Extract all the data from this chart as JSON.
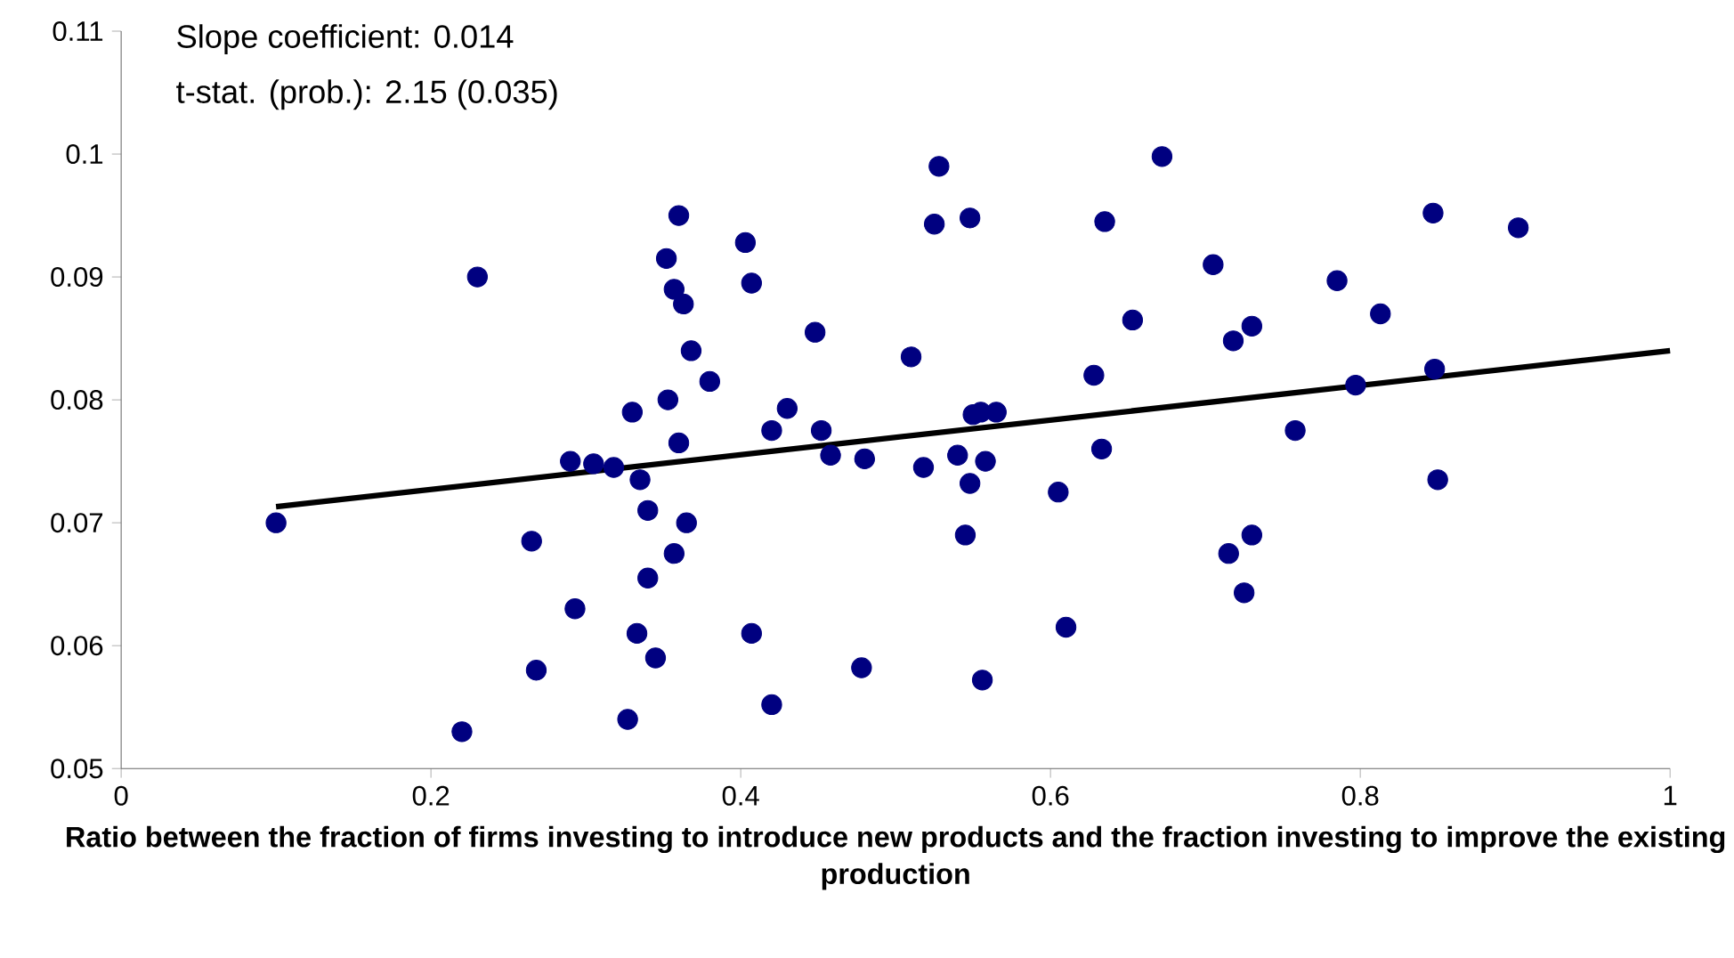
{
  "chart_data": {
    "type": "scatter",
    "xlabel": "Ratio between the fraction of firms investing to introduce new products and the fraction investing to improve the existing production",
    "annotations": [
      "Slope coefficient: 0.014",
      "t-stat. (prob.): 2.15 (0.035)"
    ],
    "xlim": [
      0,
      1
    ],
    "ylim": [
      0.05,
      0.11
    ],
    "xticks": [
      0,
      0.2,
      0.4,
      0.6,
      0.8,
      1
    ],
    "yticks": [
      0.05,
      0.06,
      0.07,
      0.08,
      0.09,
      0.1,
      0.11
    ],
    "series": [
      {
        "type": "scatter",
        "color": "#000080",
        "marker": "circle",
        "x": [
          0.1,
          0.22,
          0.23,
          0.265,
          0.268,
          0.29,
          0.293,
          0.305,
          0.318,
          0.327,
          0.33,
          0.333,
          0.335,
          0.34,
          0.34,
          0.345,
          0.352,
          0.353,
          0.357,
          0.357,
          0.36,
          0.36,
          0.363,
          0.365,
          0.368,
          0.38,
          0.403,
          0.407,
          0.407,
          0.42,
          0.42,
          0.43,
          0.448,
          0.452,
          0.458,
          0.478,
          0.48,
          0.51,
          0.518,
          0.525,
          0.528,
          0.54,
          0.545,
          0.548,
          0.548,
          0.55,
          0.555,
          0.556,
          0.558,
          0.565,
          0.605,
          0.61,
          0.628,
          0.633,
          0.635,
          0.653,
          0.672,
          0.705,
          0.715,
          0.718,
          0.725,
          0.73,
          0.73,
          0.758,
          0.785,
          0.797,
          0.813,
          0.847,
          0.848,
          0.85,
          0.902
        ],
        "values": [
          0.07,
          0.053,
          0.09,
          0.0685,
          0.058,
          0.075,
          0.063,
          0.0748,
          0.0745,
          0.054,
          0.079,
          0.061,
          0.0735,
          0.0655,
          0.071,
          0.059,
          0.0915,
          0.08,
          0.089,
          0.0675,
          0.0765,
          0.095,
          0.0878,
          0.07,
          0.084,
          0.0815,
          0.0928,
          0.0895,
          0.061,
          0.0552,
          0.0775,
          0.0793,
          0.0855,
          0.0775,
          0.0755,
          0.0582,
          0.0752,
          0.0835,
          0.0745,
          0.0943,
          0.099,
          0.0755,
          0.069,
          0.0948,
          0.0732,
          0.0788,
          0.079,
          0.0572,
          0.075,
          0.079,
          0.0725,
          0.0615,
          0.082,
          0.076,
          0.0945,
          0.0865,
          0.0998,
          0.091,
          0.0675,
          0.0848,
          0.0643,
          0.069,
          0.086,
          0.0775,
          0.0897,
          0.0812,
          0.087,
          0.0952,
          0.0825,
          0.0735,
          0.094
        ]
      },
      {
        "type": "line",
        "color": "#000000",
        "marker": "none",
        "line_style": "solid",
        "x": [
          0.1,
          1
        ],
        "values": [
          0.0713,
          0.084
        ]
      }
    ]
  }
}
